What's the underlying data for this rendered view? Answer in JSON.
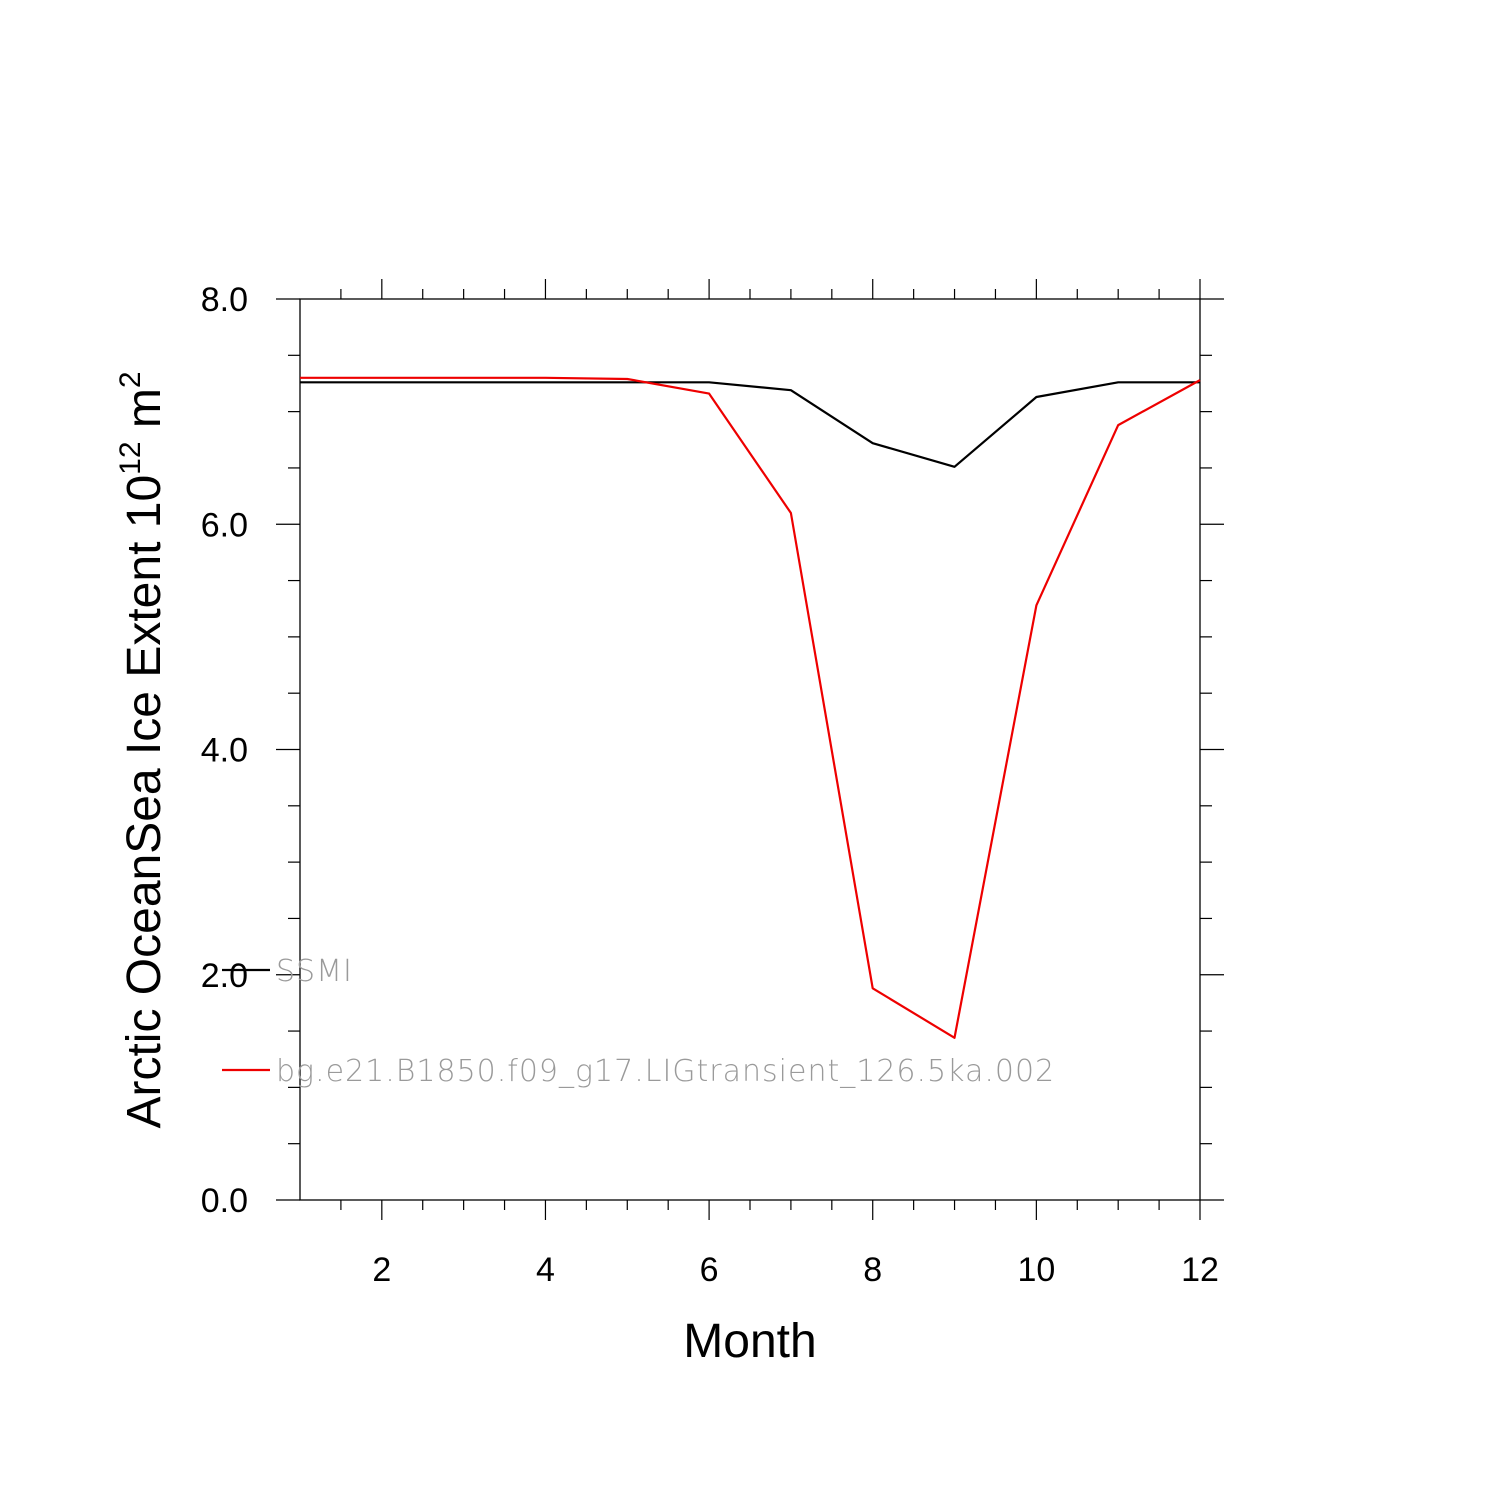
{
  "chart_data": {
    "type": "line",
    "xlabel": "Month",
    "ylabel": {
      "prefix": "Arctic OceanSea Ice Extent 10",
      "exp1": "12",
      "unit": " m",
      "exp2": "2"
    },
    "xlim": [
      1,
      12
    ],
    "ylim": [
      0,
      8
    ],
    "xticks": [
      2,
      4,
      6,
      8,
      10,
      12
    ],
    "xtick_labels": [
      "2",
      "4",
      "6",
      "8",
      "10",
      "12"
    ],
    "yticks": [
      0,
      2,
      4,
      6,
      8
    ],
    "ytick_labels": [
      "0.0",
      "2.0",
      "4.0",
      "6.0",
      "8.0"
    ],
    "x": [
      1,
      2,
      3,
      4,
      5,
      6,
      7,
      8,
      9,
      10,
      11,
      12
    ],
    "series": [
      {
        "name": "SSMI",
        "color": "#000000",
        "values": [
          7.26,
          7.26,
          7.26,
          7.26,
          7.26,
          7.26,
          7.19,
          6.72,
          6.51,
          7.13,
          7.26,
          7.26
        ]
      },
      {
        "name": "bg.e21.B1850.f09_g17.LIGtransient_126.5ka.002",
        "color": "#ee0000",
        "values": [
          7.3,
          7.3,
          7.3,
          7.3,
          7.29,
          7.16,
          6.1,
          1.88,
          1.44,
          5.28,
          6.88,
          7.28
        ]
      }
    ],
    "grid": false,
    "legend_position": "bottom-left"
  }
}
